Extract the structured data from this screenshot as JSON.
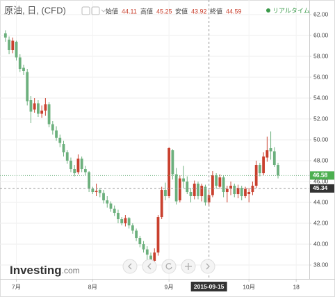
{
  "chart_data": {
    "type": "candlestick",
    "title": "原油, 日, (CFD)",
    "header": {
      "open_label": "始値",
      "open": 44.11,
      "high_label": "高値",
      "high": 45.25,
      "low_label": "安値",
      "low": 43.92,
      "close_label": "終値",
      "close": 44.59
    },
    "legend": "リアルタイム",
    "up_color": "#c9402e",
    "down_color": "#6cb07d",
    "open": [
      60.2,
      59.6,
      58.6,
      59.4,
      57.9,
      56.9,
      56.5,
      53.8,
      52.9,
      53.5,
      52.5,
      52.8,
      53.4,
      51.5,
      50.9,
      50.2,
      49.6,
      48.8,
      48.0,
      47.2,
      46.9,
      48.2,
      47.2,
      46.9,
      45.3,
      45.0,
      45.2,
      44.9,
      44.2,
      43.9,
      43.4,
      43.0,
      42.4,
      42.0,
      42.5,
      41.8,
      41.3,
      40.6,
      40.0,
      39.5,
      38.9,
      38.4,
      39.2,
      42.6,
      45.2,
      44.6,
      49.0,
      46.7,
      44.2,
      46.3,
      46.0,
      45.0,
      44.6,
      45.8,
      44.6,
      45.5,
      44.0,
      44.7,
      46.6,
      45.5,
      46.4,
      45.0,
      45.3,
      45.6,
      44.8,
      45.4,
      44.6,
      44.8,
      45.0,
      45.6,
      47.6,
      46.8,
      48.3,
      49.2,
      48.9,
      47.6
    ],
    "high": [
      60.5,
      59.9,
      59.8,
      59.5,
      58.2,
      57.2,
      56.8,
      54.2,
      54.0,
      53.8,
      53.3,
      54.0,
      53.6,
      51.8,
      51.3,
      50.5,
      49.9,
      49.0,
      48.3,
      47.6,
      48.6,
      48.4,
      47.5,
      47.0,
      45.5,
      45.8,
      45.4,
      45.2,
      44.6,
      44.1,
      43.7,
      43.3,
      42.6,
      42.8,
      42.6,
      42.0,
      41.5,
      40.8,
      40.3,
      39.8,
      39.2,
      39.6,
      42.8,
      45.5,
      45.9,
      49.3,
      49.1,
      47.3,
      46.6,
      47.5,
      46.5,
      45.4,
      46.1,
      46.0,
      45.8,
      45.7,
      45.2,
      47.0,
      46.8,
      46.7,
      46.6,
      45.6,
      46.0,
      45.8,
      45.7,
      45.6,
      45.5,
      45.4,
      46.0,
      48.0,
      47.8,
      48.8,
      50.3,
      50.8,
      49.3,
      47.8
    ],
    "low": [
      59.4,
      58.2,
      58.3,
      57.6,
      56.5,
      56.2,
      53.3,
      51.6,
      52.6,
      52.2,
      52.1,
      52.3,
      51.2,
      50.5,
      49.9,
      49.3,
      48.4,
      47.7,
      46.9,
      46.5,
      46.7,
      46.9,
      46.6,
      45.0,
      44.8,
      44.6,
      44.5,
      43.9,
      43.5,
      43.1,
      42.7,
      42.0,
      41.8,
      41.7,
      41.5,
      41.0,
      40.3,
      39.7,
      39.2,
      38.5,
      38.0,
      38.2,
      38.9,
      42.4,
      44.2,
      44.4,
      46.2,
      43.8,
      44.0,
      45.4,
      44.8,
      44.0,
      44.3,
      44.3,
      44.1,
      43.7,
      43.6,
      44.5,
      45.3,
      45.3,
      44.5,
      44.0,
      44.7,
      44.5,
      44.4,
      44.2,
      44.4,
      44.0,
      44.7,
      45.4,
      46.5,
      46.6,
      47.9,
      48.1,
      47.4,
      46.3
    ],
    "close": [
      59.8,
      58.6,
      59.5,
      57.9,
      56.8,
      56.6,
      53.7,
      52.7,
      53.5,
      52.5,
      52.8,
      53.4,
      51.5,
      50.9,
      50.2,
      49.7,
      48.8,
      48.0,
      47.2,
      46.8,
      48.2,
      47.2,
      46.9,
      45.3,
      45.0,
      45.1,
      44.9,
      44.2,
      43.9,
      43.4,
      43.0,
      42.4,
      42.0,
      42.5,
      41.8,
      41.3,
      40.6,
      40.0,
      39.5,
      39.0,
      38.4,
      39.2,
      42.6,
      45.2,
      44.6,
      49.2,
      46.7,
      44.1,
      46.3,
      46.0,
      45.0,
      44.6,
      45.8,
      44.6,
      45.6,
      44.0,
      44.7,
      46.6,
      45.6,
      46.4,
      45.0,
      45.3,
      45.6,
      44.8,
      45.4,
      44.6,
      45.3,
      45.0,
      45.6,
      47.6,
      46.8,
      48.4,
      49.0,
      48.9,
      47.6,
      46.58
    ],
    "xlim": [
      -1.5,
      83.6
    ],
    "xticks": [
      {
        "value": 3,
        "label": "7月"
      },
      {
        "value": 24,
        "label": "8月"
      },
      {
        "value": 45,
        "label": "9月"
      },
      {
        "value": 67,
        "label": "10月"
      },
      {
        "value": 80,
        "label": "18"
      }
    ],
    "ylim": [
      36.67,
      63.4
    ],
    "yticks": [
      {
        "value": 38,
        "label": "38.00"
      },
      {
        "value": 40,
        "label": "40.00"
      },
      {
        "value": 42,
        "label": "42.00"
      },
      {
        "value": 44,
        "label": "44.00"
      },
      {
        "value": 46,
        "label": "46.00"
      },
      {
        "value": 48,
        "label": "48.00"
      },
      {
        "value": 50,
        "label": "50.00"
      },
      {
        "value": 52,
        "label": "52.00"
      },
      {
        "value": 54,
        "label": "54.00"
      },
      {
        "value": 56,
        "label": "56.00"
      },
      {
        "value": 58,
        "label": "58.00"
      },
      {
        "value": 60,
        "label": "60.00"
      },
      {
        "value": 62,
        "label": "62.00"
      }
    ],
    "grid": true,
    "last_price": 46.58,
    "crosshair": {
      "x": 56,
      "x_label": "2015-09-15",
      "y": 45.34
    },
    "watermark": {
      "brand": "Investing",
      "suffix": ".com"
    }
  }
}
